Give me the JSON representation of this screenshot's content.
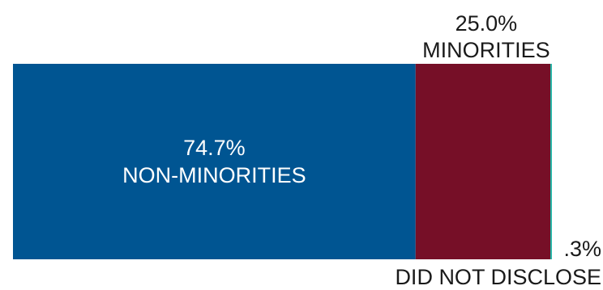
{
  "chart_data": {
    "type": "bar",
    "orientation": "horizontal-stacked",
    "segments": [
      {
        "value": 74.7,
        "value_label": "74.7%",
        "category": "NON-MINORITIES",
        "color": "#005592",
        "label_color": "#ffffff",
        "label_placement": "inside"
      },
      {
        "value": 25.0,
        "value_label": "25.0%",
        "category": "MINORITIES",
        "color": "#760f27",
        "label_color": "#1a1a1a",
        "label_placement": "above"
      },
      {
        "value": 0.3,
        "value_label": ".3%",
        "category": "DID NOT DISCLOSE",
        "color": "#29b6a8",
        "label_color": "#1a1a1a",
        "label_placement": "right-below"
      }
    ],
    "total": 100,
    "legend": "none",
    "grid": false
  }
}
